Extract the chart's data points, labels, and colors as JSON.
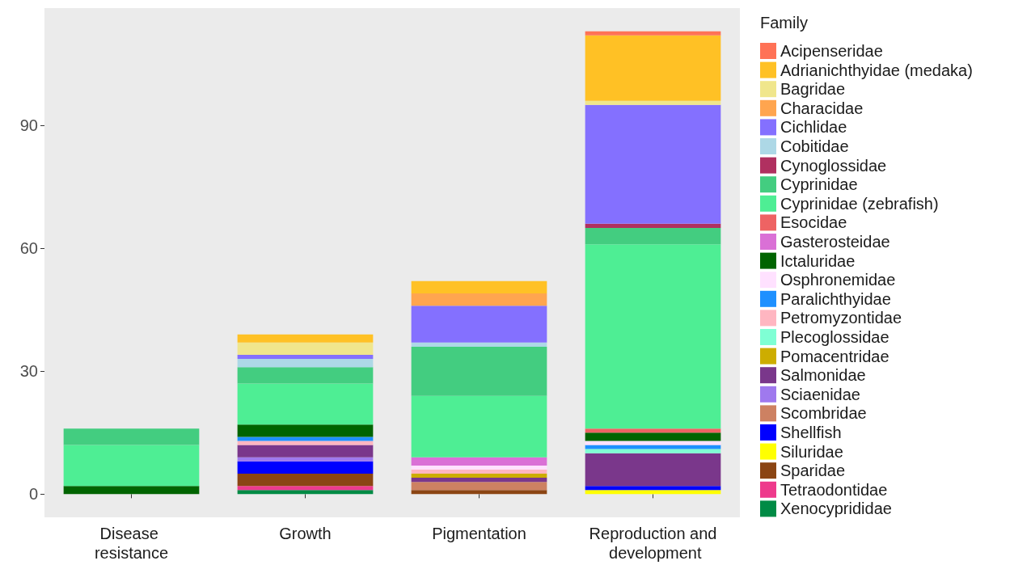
{
  "chart_data": {
    "type": "bar",
    "stacked": true,
    "legend_title": "Family",
    "legend": "right",
    "grid": false,
    "categories": [
      "Disease resistance",
      "Growth",
      "Pigmentation",
      "Reproduction and development"
    ],
    "ylim": [
      -5.65,
      118.65
    ],
    "yticks": [
      0,
      30,
      60,
      90
    ],
    "series": [
      {
        "name": "Xenocyprididae",
        "color": "#008b45",
        "values": [
          null,
          1,
          null,
          null
        ]
      },
      {
        "name": "Tetraodontidae",
        "color": "#ee3a8c",
        "values": [
          null,
          1,
          null,
          null
        ]
      },
      {
        "name": "Sparidae",
        "color": "#8b4513",
        "values": [
          null,
          3,
          1,
          null
        ]
      },
      {
        "name": "Siluridae",
        "color": "#ffff00",
        "values": [
          null,
          null,
          null,
          1
        ]
      },
      {
        "name": "Shellfish",
        "color": "#0000ff",
        "values": [
          null,
          3,
          null,
          1
        ]
      },
      {
        "name": "Scombridae",
        "color": "#cd8162",
        "values": [
          null,
          null,
          2,
          null
        ]
      },
      {
        "name": "Sciaenidae",
        "color": "#9f79ee",
        "values": [
          null,
          1,
          null,
          null
        ]
      },
      {
        "name": "Salmonidae",
        "color": "#7a378b",
        "values": [
          null,
          3,
          1,
          8
        ]
      },
      {
        "name": "Pomacentridae",
        "color": "#cdad00",
        "values": [
          null,
          null,
          1,
          null
        ]
      },
      {
        "name": "Plecoglossidae",
        "color": "#7fffd4",
        "values": [
          null,
          null,
          null,
          1
        ]
      },
      {
        "name": "Petromyzontidae",
        "color": "#ffb6c1",
        "values": [
          null,
          1,
          1,
          null
        ]
      },
      {
        "name": "Paralichthyidae",
        "color": "#1e90ff",
        "values": [
          null,
          1,
          null,
          1
        ]
      },
      {
        "name": "Osphronemidae",
        "color": "#ffe1ff",
        "values": [
          null,
          null,
          1,
          1
        ]
      },
      {
        "name": "Ictaluridae",
        "color": "#006400",
        "values": [
          2,
          3,
          null,
          2
        ]
      },
      {
        "name": "Gasterosteidae",
        "color": "#da70d6",
        "values": [
          null,
          null,
          2,
          null
        ]
      },
      {
        "name": "Esocidae",
        "color": "#ee6363",
        "values": [
          null,
          null,
          null,
          1
        ]
      },
      {
        "name": "Cyprinidae (zebrafish)",
        "color": "#4eee94",
        "values": [
          10,
          10,
          15,
          45
        ]
      },
      {
        "name": "Cyprinidae",
        "color": "#43cd80",
        "values": [
          4,
          4,
          12,
          4
        ]
      },
      {
        "name": "Cynoglossidae",
        "color": "#b03060",
        "values": [
          null,
          null,
          null,
          1
        ]
      },
      {
        "name": "Cobitidae",
        "color": "#add8e6",
        "values": [
          null,
          2,
          1,
          null
        ]
      },
      {
        "name": "Cichlidae",
        "color": "#8470ff",
        "values": [
          null,
          1,
          9,
          29
        ]
      },
      {
        "name": "Characidae",
        "color": "#ffa54f",
        "values": [
          null,
          null,
          3,
          null
        ]
      },
      {
        "name": "Bagridae",
        "color": "#f0e68c",
        "values": [
          null,
          3,
          null,
          1
        ]
      },
      {
        "name": "Adrianichthyidae (medaka)",
        "color": "#ffc125",
        "values": [
          null,
          2,
          3,
          16
        ]
      },
      {
        "name": "Acipenseridae",
        "color": "#ff7256",
        "values": [
          null,
          null,
          null,
          1
        ]
      }
    ]
  }
}
